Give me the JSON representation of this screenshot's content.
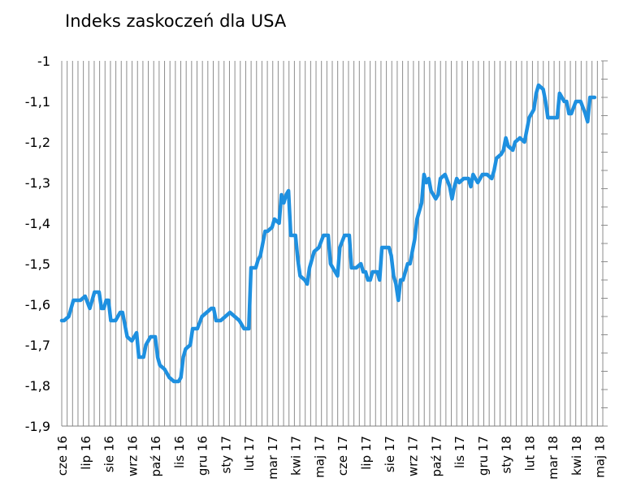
{
  "chart_data": {
    "type": "line",
    "title": "Indeks zaskoczeń dla USA",
    "xlabel": "",
    "ylabel": "",
    "ylim": [
      -1.9,
      -1.0
    ],
    "y_ticks": [
      "-1",
      "-1,1",
      "-1,2",
      "-1,3",
      "-1,4",
      "-1,5",
      "-1,6",
      "-1,7",
      "-1,8",
      "-1,9"
    ],
    "y_tick_values": [
      -1.0,
      -1.1,
      -1.2,
      -1.3,
      -1.4,
      -1.5,
      -1.6,
      -1.7,
      -1.8,
      -1.9
    ],
    "x_ticks": [
      "cze 16",
      "lip 16",
      "sie 16",
      "wrz 16",
      "paź 16",
      "lis 16",
      "gru 16",
      "sty 17",
      "lut 17",
      "mar 17",
      "kwi 17",
      "maj 17",
      "cze 17",
      "lip 17",
      "sie 17",
      "wrz 17",
      "paź 17",
      "lis 17",
      "gru 17",
      "sty 18",
      "lut 18",
      "mar 18",
      "kwi 18",
      "maj 18"
    ],
    "grid": "vertical",
    "line_color": "#1E90E0",
    "series": [
      {
        "points": [
          [
            0.0,
            -1.64
          ],
          [
            0.1,
            -1.64
          ],
          [
            0.3,
            -1.63
          ],
          [
            0.5,
            -1.59
          ],
          [
            0.8,
            -1.59
          ],
          [
            1.0,
            -1.58
          ],
          [
            1.2,
            -1.61
          ],
          [
            1.4,
            -1.57
          ],
          [
            1.6,
            -1.57
          ],
          [
            1.7,
            -1.61
          ],
          [
            1.8,
            -1.61
          ],
          [
            1.9,
            -1.59
          ],
          [
            2.0,
            -1.59
          ],
          [
            2.1,
            -1.64
          ],
          [
            2.3,
            -1.64
          ],
          [
            2.5,
            -1.62
          ],
          [
            2.6,
            -1.62
          ],
          [
            2.7,
            -1.65
          ],
          [
            2.8,
            -1.68
          ],
          [
            3.0,
            -1.69
          ],
          [
            3.2,
            -1.67
          ],
          [
            3.3,
            -1.73
          ],
          [
            3.5,
            -1.73
          ],
          [
            3.6,
            -1.7
          ],
          [
            3.8,
            -1.68
          ],
          [
            4.0,
            -1.68
          ],
          [
            4.1,
            -1.73
          ],
          [
            4.2,
            -1.75
          ],
          [
            4.4,
            -1.76
          ],
          [
            4.6,
            -1.78
          ],
          [
            4.8,
            -1.79
          ],
          [
            5.0,
            -1.79
          ],
          [
            5.1,
            -1.78
          ],
          [
            5.2,
            -1.73
          ],
          [
            5.3,
            -1.71
          ],
          [
            5.5,
            -1.7
          ],
          [
            5.6,
            -1.66
          ],
          [
            5.8,
            -1.66
          ],
          [
            6.0,
            -1.63
          ],
          [
            6.2,
            -1.62
          ],
          [
            6.4,
            -1.61
          ],
          [
            6.5,
            -1.61
          ],
          [
            6.6,
            -1.64
          ],
          [
            6.8,
            -1.64
          ],
          [
            7.0,
            -1.63
          ],
          [
            7.2,
            -1.62
          ],
          [
            7.4,
            -1.63
          ],
          [
            7.6,
            -1.64
          ],
          [
            7.8,
            -1.66
          ],
          [
            8.0,
            -1.66
          ],
          [
            8.1,
            -1.51
          ],
          [
            8.3,
            -1.51
          ],
          [
            8.4,
            -1.49
          ],
          [
            8.5,
            -1.48
          ],
          [
            8.7,
            -1.42
          ],
          [
            8.8,
            -1.42
          ],
          [
            9.0,
            -1.41
          ],
          [
            9.1,
            -1.39
          ],
          [
            9.3,
            -1.4
          ],
          [
            9.4,
            -1.33
          ],
          [
            9.5,
            -1.35
          ],
          [
            9.6,
            -1.33
          ],
          [
            9.7,
            -1.32
          ],
          [
            9.8,
            -1.43
          ],
          [
            10.0,
            -1.43
          ],
          [
            10.1,
            -1.49
          ],
          [
            10.2,
            -1.53
          ],
          [
            10.4,
            -1.54
          ],
          [
            10.5,
            -1.55
          ],
          [
            10.6,
            -1.51
          ],
          [
            10.8,
            -1.47
          ],
          [
            11.0,
            -1.46
          ],
          [
            11.2,
            -1.43
          ],
          [
            11.4,
            -1.43
          ],
          [
            11.5,
            -1.5
          ],
          [
            11.6,
            -1.51
          ],
          [
            11.8,
            -1.53
          ],
          [
            11.9,
            -1.46
          ],
          [
            12.1,
            -1.43
          ],
          [
            12.3,
            -1.43
          ],
          [
            12.4,
            -1.51
          ],
          [
            12.6,
            -1.51
          ],
          [
            12.8,
            -1.5
          ],
          [
            12.9,
            -1.52
          ],
          [
            13.0,
            -1.52
          ],
          [
            13.1,
            -1.54
          ],
          [
            13.2,
            -1.54
          ],
          [
            13.3,
            -1.52
          ],
          [
            13.5,
            -1.52
          ],
          [
            13.6,
            -1.54
          ],
          [
            13.7,
            -1.46
          ],
          [
            13.8,
            -1.46
          ],
          [
            14.0,
            -1.46
          ],
          [
            14.1,
            -1.48
          ],
          [
            14.2,
            -1.53
          ],
          [
            14.3,
            -1.55
          ],
          [
            14.4,
            -1.59
          ],
          [
            14.5,
            -1.54
          ],
          [
            14.6,
            -1.54
          ],
          [
            14.8,
            -1.5
          ],
          [
            14.9,
            -1.5
          ],
          [
            15.0,
            -1.47
          ],
          [
            15.1,
            -1.44
          ],
          [
            15.2,
            -1.39
          ],
          [
            15.4,
            -1.35
          ],
          [
            15.5,
            -1.28
          ],
          [
            15.6,
            -1.3
          ],
          [
            15.7,
            -1.29
          ],
          [
            15.8,
            -1.32
          ],
          [
            16.0,
            -1.34
          ],
          [
            16.1,
            -1.33
          ],
          [
            16.2,
            -1.29
          ],
          [
            16.4,
            -1.28
          ],
          [
            16.6,
            -1.31
          ],
          [
            16.7,
            -1.34
          ],
          [
            16.8,
            -1.31
          ],
          [
            16.9,
            -1.29
          ],
          [
            17.0,
            -1.3
          ],
          [
            17.2,
            -1.29
          ],
          [
            17.4,
            -1.29
          ],
          [
            17.5,
            -1.31
          ],
          [
            17.6,
            -1.28
          ],
          [
            17.8,
            -1.3
          ],
          [
            17.9,
            -1.29
          ],
          [
            18.0,
            -1.28
          ],
          [
            18.2,
            -1.28
          ],
          [
            18.4,
            -1.29
          ],
          [
            18.5,
            -1.27
          ],
          [
            18.6,
            -1.24
          ],
          [
            18.8,
            -1.23
          ],
          [
            18.9,
            -1.22
          ],
          [
            19.0,
            -1.19
          ],
          [
            19.1,
            -1.21
          ],
          [
            19.3,
            -1.22
          ],
          [
            19.4,
            -1.2
          ],
          [
            19.6,
            -1.19
          ],
          [
            19.8,
            -1.2
          ],
          [
            20.0,
            -1.14
          ],
          [
            20.2,
            -1.12
          ],
          [
            20.3,
            -1.08
          ],
          [
            20.4,
            -1.06
          ],
          [
            20.6,
            -1.07
          ],
          [
            20.7,
            -1.1
          ],
          [
            20.8,
            -1.14
          ],
          [
            21.0,
            -1.14
          ],
          [
            21.2,
            -1.14
          ],
          [
            21.3,
            -1.08
          ],
          [
            21.5,
            -1.1
          ],
          [
            21.6,
            -1.1
          ],
          [
            21.7,
            -1.13
          ],
          [
            21.8,
            -1.13
          ],
          [
            22.0,
            -1.1
          ],
          [
            22.2,
            -1.1
          ],
          [
            22.4,
            -1.13
          ],
          [
            22.5,
            -1.15
          ],
          [
            22.6,
            -1.09
          ],
          [
            22.8,
            -1.09
          ]
        ]
      }
    ]
  }
}
